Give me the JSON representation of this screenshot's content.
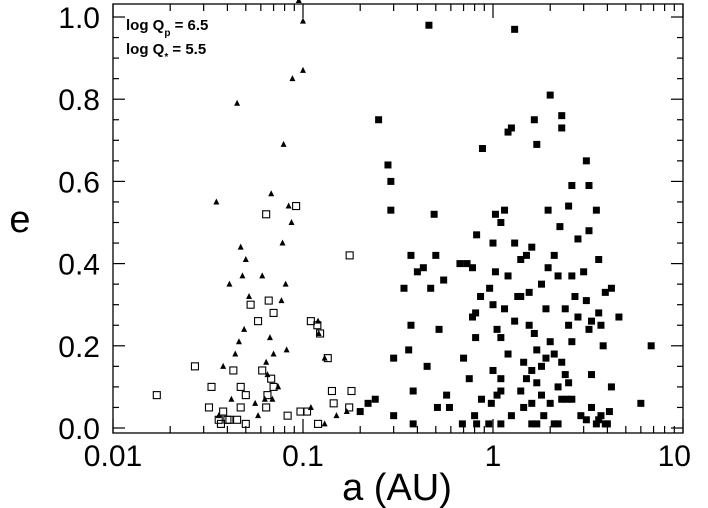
{
  "chart_data": {
    "type": "scatter",
    "xlabel": "a (AU)",
    "ylabel": "e",
    "xscale": "log",
    "xlim": [
      0.01,
      10
    ],
    "ylim": [
      0.0,
      1.05
    ],
    "xticks": [
      {
        "v": 0.01,
        "label": "0.01"
      },
      {
        "v": 0.1,
        "label": "0.1"
      },
      {
        "v": 1,
        "label": "1"
      },
      {
        "v": 10,
        "label": "10"
      }
    ],
    "yticks": [
      {
        "v": 0.0,
        "label": "0.0"
      },
      {
        "v": 0.2,
        "label": "0.2"
      },
      {
        "v": 0.4,
        "label": "0.4"
      },
      {
        "v": 0.6,
        "label": "0.6"
      },
      {
        "v": 0.8,
        "label": "0.8"
      },
      {
        "v": 1.0,
        "label": "1.0"
      }
    ],
    "annotations": [
      {
        "base": "log Q",
        "sub": "p",
        "rest": " = 6.5"
      },
      {
        "base": "log Q",
        "sub": "*",
        "rest": " = 5.5"
      }
    ],
    "series": [
      {
        "marker": "triangle",
        "color": "#000000",
        "points": [
          [
            0.095,
            1.04
          ],
          [
            0.1,
            0.99
          ],
          [
            0.1,
            0.87
          ],
          [
            0.088,
            0.85
          ],
          [
            0.045,
            0.79
          ],
          [
            0.079,
            0.69
          ],
          [
            0.035,
            0.55
          ],
          [
            0.068,
            0.57
          ],
          [
            0.084,
            0.54
          ],
          [
            0.087,
            0.5
          ],
          [
            0.078,
            0.45
          ],
          [
            0.047,
            0.44
          ],
          [
            0.05,
            0.41
          ],
          [
            0.048,
            0.37
          ],
          [
            0.041,
            0.35
          ],
          [
            0.061,
            0.37
          ],
          [
            0.052,
            0.32
          ],
          [
            0.081,
            0.35
          ],
          [
            0.077,
            0.31
          ],
          [
            0.049,
            0.24
          ],
          [
            0.046,
            0.21
          ],
          [
            0.044,
            0.18
          ],
          [
            0.067,
            0.22
          ],
          [
            0.07,
            0.18
          ],
          [
            0.082,
            0.19
          ],
          [
            0.064,
            0.16
          ],
          [
            0.038,
            0.15
          ],
          [
            0.065,
            0.13
          ],
          [
            0.074,
            0.1
          ],
          [
            0.063,
            0.07
          ],
          [
            0.069,
            0.07
          ],
          [
            0.056,
            0.06
          ],
          [
            0.042,
            0.07
          ],
          [
            0.036,
            0.03
          ],
          [
            0.058,
            0.03
          ],
          [
            0.12,
            0.26
          ],
          [
            0.121,
            0.23
          ],
          [
            0.13,
            0.17
          ],
          [
            0.11,
            0.05
          ],
          [
            0.13,
            0.01
          ],
          [
            0.17,
            0.04
          ],
          [
            0.15,
            0.03
          ]
        ]
      },
      {
        "marker": "open-square",
        "color": "#000000",
        "points": [
          [
            0.017,
            0.08
          ],
          [
            0.027,
            0.15
          ],
          [
            0.033,
            0.1
          ],
          [
            0.032,
            0.05
          ],
          [
            0.036,
            0.02
          ],
          [
            0.038,
            0.04
          ],
          [
            0.04,
            0.02
          ],
          [
            0.041,
            0.02
          ],
          [
            0.045,
            0.02
          ],
          [
            0.037,
            0.01
          ],
          [
            0.043,
            0.14
          ],
          [
            0.047,
            0.1
          ],
          [
            0.05,
            0.08
          ],
          [
            0.047,
            0.05
          ],
          [
            0.05,
            0.01
          ],
          [
            0.064,
            0.52
          ],
          [
            0.092,
            0.54
          ],
          [
            0.066,
            0.31
          ],
          [
            0.07,
            0.28
          ],
          [
            0.053,
            0.3
          ],
          [
            0.058,
            0.26
          ],
          [
            0.061,
            0.14
          ],
          [
            0.068,
            0.12
          ],
          [
            0.07,
            0.1
          ],
          [
            0.065,
            0.08
          ],
          [
            0.064,
            0.05
          ],
          [
            0.083,
            0.03
          ],
          [
            0.097,
            0.04
          ],
          [
            0.105,
            0.04
          ],
          [
            0.11,
            0.26
          ],
          [
            0.119,
            0.25
          ],
          [
            0.123,
            0.23
          ],
          [
            0.135,
            0.17
          ],
          [
            0.142,
            0.09
          ],
          [
            0.145,
            0.06
          ],
          [
            0.175,
            0.05
          ],
          [
            0.176,
            0.42
          ],
          [
            0.18,
            0.09
          ],
          [
            0.12,
            0.01
          ]
        ]
      },
      {
        "marker": "filled-square",
        "color": "#000000",
        "points": [
          [
            0.46,
            0.98
          ],
          [
            1.3,
            0.97
          ],
          [
            2.0,
            0.81
          ],
          [
            2.3,
            0.76
          ],
          [
            1.2,
            0.72
          ],
          [
            1.25,
            0.73
          ],
          [
            1.65,
            0.75
          ],
          [
            2.3,
            0.73
          ],
          [
            0.25,
            0.75
          ],
          [
            1.7,
            0.69
          ],
          [
            0.88,
            0.68
          ],
          [
            3.1,
            0.65
          ],
          [
            0.28,
            0.64
          ],
          [
            0.29,
            0.6
          ],
          [
            2.6,
            0.59
          ],
          [
            3.2,
            0.59
          ],
          [
            0.29,
            0.53
          ],
          [
            0.49,
            0.52
          ],
          [
            1.03,
            0.52
          ],
          [
            1.15,
            0.53
          ],
          [
            1.95,
            0.53
          ],
          [
            2.5,
            0.54
          ],
          [
            3.5,
            0.53
          ],
          [
            1.1,
            0.5
          ],
          [
            2.25,
            0.49
          ],
          [
            0.82,
            0.47
          ],
          [
            1.3,
            0.45
          ],
          [
            2.8,
            0.46
          ],
          [
            3.2,
            0.48
          ],
          [
            1.0,
            0.45
          ],
          [
            1.6,
            0.44
          ],
          [
            0.37,
            0.42
          ],
          [
            0.5,
            0.42
          ],
          [
            1.5,
            0.42
          ],
          [
            2.1,
            0.42
          ],
          [
            3.6,
            0.41
          ],
          [
            1.4,
            0.41
          ],
          [
            0.67,
            0.4
          ],
          [
            0.73,
            0.4
          ],
          [
            0.43,
            0.39
          ],
          [
            0.78,
            0.39
          ],
          [
            1.03,
            0.38
          ],
          [
            1.95,
            0.39
          ],
          [
            0.4,
            0.38
          ],
          [
            3.0,
            0.38
          ],
          [
            2.2,
            0.37
          ],
          [
            2.6,
            0.37
          ],
          [
            1.2,
            0.37
          ],
          [
            0.55,
            0.36
          ],
          [
            0.34,
            0.34
          ],
          [
            0.47,
            0.34
          ],
          [
            0.96,
            0.34
          ],
          [
            1.8,
            0.35
          ],
          [
            4.2,
            0.34
          ],
          [
            1.55,
            0.33
          ],
          [
            3.9,
            0.33
          ],
          [
            0.86,
            0.32
          ],
          [
            1.35,
            0.32
          ],
          [
            1.4,
            0.32
          ],
          [
            2.7,
            0.32
          ],
          [
            3.1,
            0.31
          ],
          [
            1.0,
            0.3
          ],
          [
            1.9,
            0.29
          ],
          [
            2.4,
            0.29
          ],
          [
            1.15,
            0.29
          ],
          [
            0.81,
            0.28
          ],
          [
            3.6,
            0.28
          ],
          [
            4.6,
            0.27
          ],
          [
            2.8,
            0.27
          ],
          [
            0.78,
            0.27
          ],
          [
            1.3,
            0.26
          ],
          [
            3.3,
            0.26
          ],
          [
            1.55,
            0.25
          ],
          [
            2.5,
            0.25
          ],
          [
            3.7,
            0.25
          ],
          [
            1.05,
            0.24
          ],
          [
            0.52,
            0.24
          ],
          [
            3.2,
            0.24
          ],
          [
            1.65,
            0.23
          ],
          [
            0.37,
            0.25
          ],
          [
            1.1,
            0.22
          ],
          [
            0.81,
            0.22
          ],
          [
            2.0,
            0.21
          ],
          [
            2.6,
            0.21
          ],
          [
            6.8,
            0.2
          ],
          [
            3.8,
            0.2
          ],
          [
            0.36,
            0.19
          ],
          [
            1.7,
            0.19
          ],
          [
            1.2,
            0.18
          ],
          [
            2.1,
            0.18
          ],
          [
            1.9,
            0.17
          ],
          [
            0.3,
            0.17
          ],
          [
            2.3,
            0.16
          ],
          [
            0.7,
            0.17
          ],
          [
            1.45,
            0.16
          ],
          [
            0.45,
            0.15
          ],
          [
            1.8,
            0.15
          ],
          [
            1.0,
            0.14
          ],
          [
            1.6,
            0.14
          ],
          [
            2.4,
            0.13
          ],
          [
            3.3,
            0.13
          ],
          [
            1.1,
            0.12
          ],
          [
            1.5,
            0.12
          ],
          [
            0.75,
            0.12
          ],
          [
            1.7,
            0.11
          ],
          [
            2.2,
            0.1
          ],
          [
            2.5,
            0.11
          ],
          [
            4.2,
            0.1
          ],
          [
            0.38,
            0.09
          ],
          [
            1.1,
            0.09
          ],
          [
            1.4,
            0.09
          ],
          [
            1.8,
            0.08
          ],
          [
            1.05,
            0.08
          ],
          [
            0.57,
            0.08
          ],
          [
            0.87,
            0.07
          ],
          [
            2.3,
            0.07
          ],
          [
            2.45,
            0.07
          ],
          [
            2.6,
            0.07
          ],
          [
            6.0,
            0.06
          ],
          [
            0.24,
            0.07
          ],
          [
            0.22,
            0.06
          ],
          [
            0.98,
            0.06
          ],
          [
            1.6,
            0.06
          ],
          [
            2.0,
            0.06
          ],
          [
            0.51,
            0.05
          ],
          [
            0.59,
            0.05
          ],
          [
            1.45,
            0.05
          ],
          [
            3.3,
            0.05
          ],
          [
            4.1,
            0.04
          ],
          [
            0.2,
            0.04
          ],
          [
            0.3,
            0.03
          ],
          [
            0.8,
            0.03
          ],
          [
            1.25,
            0.03
          ],
          [
            1.85,
            0.03
          ],
          [
            2.9,
            0.03
          ],
          [
            3.1,
            0.02
          ],
          [
            0.69,
            0.01
          ],
          [
            0.38,
            0.01
          ],
          [
            1.1,
            0.01
          ],
          [
            1.6,
            0.01
          ],
          [
            2.1,
            0.01
          ],
          [
            3.5,
            0.01
          ],
          [
            3.9,
            0.01
          ],
          [
            3.6,
            0.02
          ],
          [
            0.82,
            0.01
          ],
          [
            0.95,
            0.01
          ],
          [
            1.7,
            0.01
          ],
          [
            2.2,
            0.01
          ],
          [
            3.7,
            0.03
          ],
          [
            4.0,
            0.01
          ]
        ]
      }
    ]
  }
}
